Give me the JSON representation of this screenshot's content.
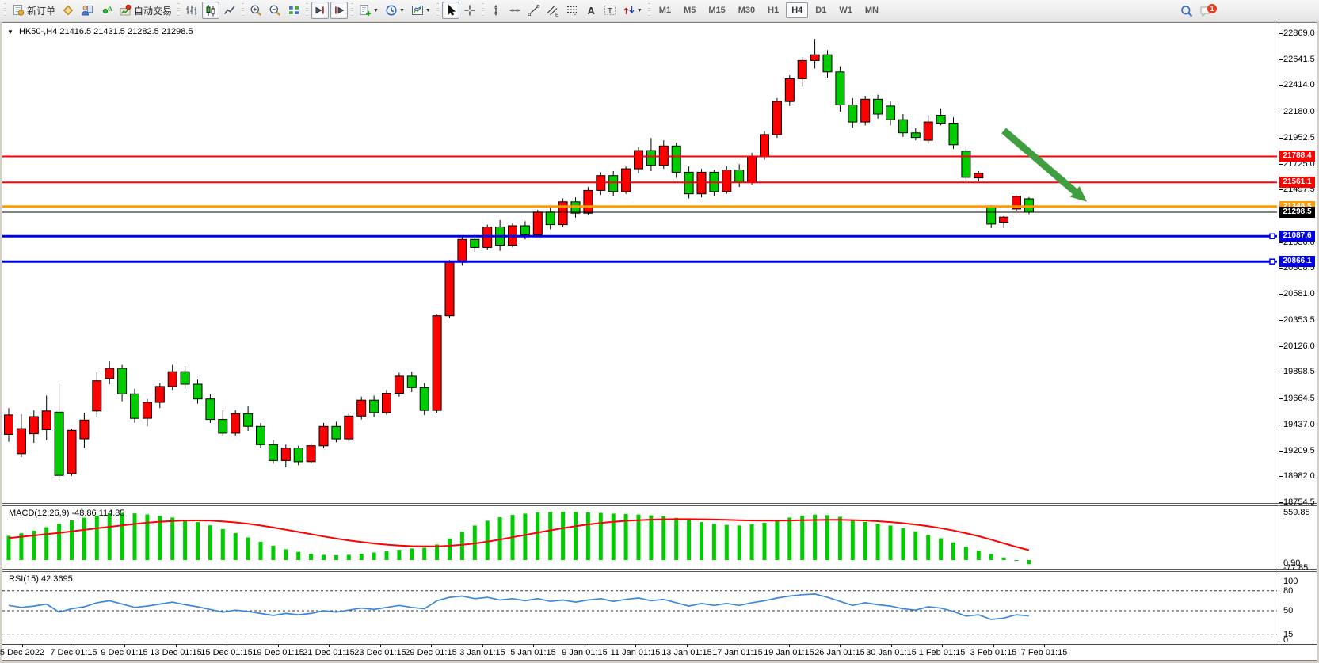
{
  "toolbar": {
    "groups": [
      {
        "items": [
          {
            "name": "new-order-button",
            "icon": "new-order",
            "label": "新订单"
          },
          {
            "name": "gold-chart-button",
            "icon": "gold-diamond"
          },
          {
            "name": "market-watch-button",
            "icon": "person"
          },
          {
            "name": "navigator-button",
            "icon": "sonar"
          },
          {
            "name": "autotrading-button",
            "icon": "autotrading",
            "label": "自动交易"
          }
        ]
      },
      {
        "items": [
          {
            "name": "bar-chart-button",
            "icon": "bar-chart"
          },
          {
            "name": "candlestick-chart-button",
            "icon": "candlestick",
            "pressed": true
          },
          {
            "name": "line-chart-button",
            "icon": "line-chart"
          }
        ]
      },
      {
        "items": [
          {
            "name": "zoom-in-button",
            "icon": "zoom-in"
          },
          {
            "name": "zoom-out-button",
            "icon": "zoom-out"
          },
          {
            "name": "tile-windows-button",
            "icon": "tile-windows"
          }
        ]
      },
      {
        "items": [
          {
            "name": "auto-scroll-button",
            "icon": "auto-scroll",
            "pressed": true
          },
          {
            "name": "chart-shift-button",
            "icon": "chart-shift",
            "pressed": true
          }
        ]
      },
      {
        "items": [
          {
            "name": "indicators-button",
            "icon": "indicators",
            "dropdown": true
          },
          {
            "name": "periods-button",
            "icon": "clock",
            "dropdown": true
          },
          {
            "name": "templates-button",
            "icon": "template",
            "dropdown": true
          }
        ]
      },
      {
        "items": [
          {
            "name": "cursor-button",
            "icon": "cursor",
            "pressed": true
          },
          {
            "name": "crosshair-button",
            "icon": "crosshair"
          }
        ]
      },
      {
        "items": [
          {
            "name": "vertical-line-button",
            "icon": "v-line"
          },
          {
            "name": "horizontal-line-button",
            "icon": "h-line"
          },
          {
            "name": "trendline-button",
            "icon": "trendline"
          },
          {
            "name": "equidistant-channel-button",
            "icon": "channel"
          },
          {
            "name": "fibonacci-button",
            "icon": "fibonacci"
          },
          {
            "name": "text-button",
            "icon": "text-a"
          },
          {
            "name": "text-label-button",
            "icon": "text-label"
          },
          {
            "name": "arrows-button",
            "icon": "arrows-tool",
            "dropdown": true
          }
        ]
      }
    ],
    "timeframes": [
      "M1",
      "M5",
      "M15",
      "M30",
      "H1",
      "H4",
      "D1",
      "W1",
      "MN"
    ],
    "active_timeframe": "H4",
    "right": [
      {
        "name": "search-button",
        "icon": "magnifier"
      },
      {
        "name": "notifications-button",
        "icon": "chat",
        "badge": "1"
      }
    ]
  },
  "symbol_header": {
    "symbol": "HK50-,H4",
    "ohlc": "21416.5 21431.5 21282.5 21298.5"
  },
  "price_axis_ticks": [
    "22869.0",
    "22641.5",
    "22414.0",
    "22180.0",
    "21952.5",
    "21725.0",
    "21497.5",
    "21270.0",
    "21036.0",
    "20808.5",
    "20581.0",
    "20353.5",
    "20126.0",
    "19898.5",
    "19664.5",
    "19437.0",
    "19209.5",
    "18982.0",
    "18754.5"
  ],
  "price_levels": [
    {
      "value": 21788.4,
      "tag": "21788.4",
      "color": "#ff0000",
      "thickness": 2,
      "role": "resistance"
    },
    {
      "value": 21561.1,
      "tag": "21561.1",
      "color": "#ff0000",
      "thickness": 2,
      "role": "resistance"
    },
    {
      "value": 21348.5,
      "tag": "21348.5",
      "color": "#ff9a00",
      "thickness": 3,
      "role": "pivot"
    },
    {
      "value": 21298.5,
      "tag": "21298.5",
      "color": "#000000",
      "thickness": 1,
      "role": "current-price"
    },
    {
      "value": 21087.6,
      "tag": "21087.6",
      "color": "#0000e8",
      "thickness": 3,
      "role": "support",
      "endpoint_marker": true
    },
    {
      "value": 20866.1,
      "tag": "20866.1",
      "color": "#0000e8",
      "thickness": 3,
      "role": "support",
      "endpoint_marker": true
    }
  ],
  "date_axis": [
    "5 Dec 2022",
    "7 Dec 01:15",
    "9 Dec 01:15",
    "13 Dec 01:15",
    "15 Dec 01:15",
    "19 Dec 01:15",
    "21 Dec 01:15",
    "23 Dec 01:15",
    "29 Dec 01:15",
    "3 Jan 01:15",
    "5 Jan 01:15",
    "9 Jan 01:15",
    "11 Jan 01:15",
    "13 Jan 01:15",
    "17 Jan 01:15",
    "19 Jan 01:15",
    "26 Jan 01:15",
    "30 Jan 01:15",
    "1 Feb 01:15",
    "3 Feb 01:15",
    "7 Feb 01:15"
  ],
  "chart_data": {
    "type": "candlestick",
    "symbol": "HK50-",
    "timeframe": "H4",
    "up_color": "#ff0000",
    "down_color": "#00cc00",
    "price_range": [
      18754.5,
      22869.0
    ],
    "candles_ohlc": [
      [
        19350,
        19580,
        19285,
        19520
      ],
      [
        19180,
        19525,
        19150,
        19400
      ],
      [
        19355,
        19560,
        19275,
        19505
      ],
      [
        19390,
        19690,
        19300,
        19555
      ],
      [
        19545,
        19795,
        18950,
        18990
      ],
      [
        19005,
        19400,
        18985,
        19385
      ],
      [
        19310,
        19540,
        19230,
        19475
      ],
      [
        19555,
        19895,
        19500,
        19820
      ],
      [
        19840,
        19990,
        19790,
        19930
      ],
      [
        19930,
        19960,
        19640,
        19705
      ],
      [
        19705,
        19750,
        19450,
        19490
      ],
      [
        19490,
        19660,
        19420,
        19630
      ],
      [
        19630,
        19800,
        19580,
        19770
      ],
      [
        19770,
        19960,
        19740,
        19900
      ],
      [
        19900,
        19950,
        19750,
        19790
      ],
      [
        19790,
        19830,
        19620,
        19660
      ],
      [
        19660,
        19700,
        19450,
        19480
      ],
      [
        19480,
        19560,
        19330,
        19360
      ],
      [
        19360,
        19560,
        19340,
        19530
      ],
      [
        19530,
        19600,
        19380,
        19420
      ],
      [
        19420,
        19450,
        19230,
        19260
      ],
      [
        19260,
        19300,
        19090,
        19120
      ],
      [
        19120,
        19260,
        19060,
        19230
      ],
      [
        19230,
        19250,
        19080,
        19110
      ],
      [
        19110,
        19270,
        19090,
        19250
      ],
      [
        19250,
        19450,
        19230,
        19420
      ],
      [
        19420,
        19460,
        19280,
        19310
      ],
      [
        19310,
        19540,
        19290,
        19510
      ],
      [
        19510,
        19680,
        19480,
        19650
      ],
      [
        19650,
        19690,
        19500,
        19540
      ],
      [
        19540,
        19740,
        19520,
        19710
      ],
      [
        19710,
        19890,
        19680,
        19860
      ],
      [
        19860,
        19900,
        19720,
        19760
      ],
      [
        19760,
        19800,
        19520,
        19560
      ],
      [
        19560,
        20400,
        19540,
        20390
      ],
      [
        20390,
        20880,
        20370,
        20860
      ],
      [
        20860,
        21080,
        20830,
        21060
      ],
      [
        21060,
        21100,
        20950,
        20990
      ],
      [
        20990,
        21190,
        20970,
        21170
      ],
      [
        21170,
        21230,
        20960,
        21010
      ],
      [
        21010,
        21200,
        20990,
        21180
      ],
      [
        21180,
        21220,
        21060,
        21100
      ],
      [
        21100,
        21320,
        21080,
        21300
      ],
      [
        21300,
        21340,
        21150,
        21190
      ],
      [
        21190,
        21420,
        21170,
        21390
      ],
      [
        21390,
        21430,
        21250,
        21290
      ],
      [
        21290,
        21520,
        21270,
        21490
      ],
      [
        21490,
        21650,
        21450,
        21620
      ],
      [
        21620,
        21660,
        21440,
        21480
      ],
      [
        21480,
        21700,
        21460,
        21680
      ],
      [
        21680,
        21870,
        21640,
        21840
      ],
      [
        21840,
        21950,
        21660,
        21710
      ],
      [
        21710,
        21930,
        21680,
        21880
      ],
      [
        21880,
        21910,
        21600,
        21650
      ],
      [
        21650,
        21700,
        21420,
        21460
      ],
      [
        21460,
        21680,
        21430,
        21650
      ],
      [
        21650,
        21670,
        21440,
        21480
      ],
      [
        21480,
        21700,
        21460,
        21670
      ],
      [
        21670,
        21720,
        21520,
        21560
      ],
      [
        21560,
        21820,
        21540,
        21790
      ],
      [
        21790,
        22010,
        21760,
        21980
      ],
      [
        21980,
        22300,
        21950,
        22270
      ],
      [
        22270,
        22500,
        22230,
        22470
      ],
      [
        22470,
        22660,
        22400,
        22630
      ],
      [
        22630,
        22820,
        22560,
        22680
      ],
      [
        22680,
        22720,
        22480,
        22530
      ],
      [
        22530,
        22580,
        22180,
        22240
      ],
      [
        22240,
        22300,
        22040,
        22090
      ],
      [
        22090,
        22320,
        22060,
        22290
      ],
      [
        22290,
        22330,
        22120,
        22160
      ],
      [
        22230,
        22270,
        22060,
        22110
      ],
      [
        22110,
        22160,
        21960,
        21995
      ],
      [
        21995,
        22035,
        21930,
        21955
      ],
      [
        21930,
        22150,
        21900,
        22090
      ],
      [
        22150,
        22210,
        22060,
        22080
      ],
      [
        22080,
        22130,
        21855,
        21890
      ],
      [
        21835,
        21880,
        21560,
        21605
      ],
      [
        21600,
        21660,
        21570,
        21640
      ],
      [
        21345,
        21360,
        21160,
        21195
      ],
      [
        21210,
        21265,
        21160,
        21255
      ],
      [
        21327,
        21445,
        21305,
        21438
      ],
      [
        21416.5,
        21431.5,
        21282.5,
        21298.5
      ]
    ],
    "annotation_arrow": {
      "color": "#3f9e3f",
      "from_bar": 79,
      "from_price": 22015,
      "to_bar": 85.6,
      "to_price": 21390
    },
    "macd": {
      "label": "MACD(12,26,9) -48.86 114.85",
      "params": "12,26,9",
      "last_main": -48.86,
      "last_signal": 114.85,
      "axis_labels": [
        "559.85",
        "0.90",
        "-77.85"
      ],
      "axis_max": 559.85,
      "axis_min": -77.85,
      "histogram_color": "#00cc00",
      "signal_color": "#ff0000",
      "histogram": [
        280,
        310,
        340,
        380,
        420,
        460,
        490,
        515,
        535,
        545,
        540,
        528,
        512,
        492,
        468,
        440,
        402,
        360,
        312,
        262,
        212,
        165,
        125,
        95,
        72,
        60,
        55,
        60,
        72,
        86,
        100,
        118,
        134,
        142,
        180,
        250,
        330,
        400,
        455,
        495,
        522,
        538,
        550,
        557,
        559.85,
        556,
        552,
        546,
        538,
        532,
        527,
        518,
        508,
        488,
        462,
        440,
        420,
        408,
        400,
        412,
        432,
        462,
        492,
        512,
        526,
        520,
        500,
        470,
        442,
        420,
        400,
        370,
        332,
        292,
        252,
        205,
        155,
        110,
        70,
        30,
        -10,
        -48.86
      ],
      "signal": [
        255,
        270,
        285,
        300,
        315,
        332,
        350,
        368,
        385,
        402,
        418,
        432,
        444,
        453,
        458,
        459,
        456,
        448,
        436,
        420,
        400,
        377,
        352,
        326,
        300,
        274,
        250,
        228,
        209,
        192,
        178,
        168,
        161,
        158,
        159,
        165,
        176,
        192,
        213,
        238,
        264,
        291,
        318,
        344,
        369,
        392,
        412,
        429,
        443,
        454,
        462,
        468,
        472,
        474,
        474,
        472,
        469,
        465,
        461,
        458,
        456,
        456,
        458,
        461,
        464,
        466,
        466,
        463,
        458,
        450,
        440,
        427,
        411,
        392,
        369,
        342,
        311,
        276,
        237,
        194,
        152,
        114.85
      ]
    },
    "rsi": {
      "label": "RSI(15) 42.3695",
      "period": 15,
      "last_value": 42.3695,
      "axis_labels": [
        "100",
        "80",
        "50",
        "15",
        "0"
      ],
      "levels_dashed": [
        80,
        50,
        15
      ],
      "line_color": "#3f87d9",
      "series": [
        58,
        55,
        57,
        60,
        48,
        53,
        56,
        62,
        65,
        60,
        55,
        57,
        60,
        63,
        59,
        56,
        52,
        48,
        51,
        49,
        46,
        43,
        46,
        44,
        46,
        50,
        48,
        51,
        54,
        52,
        55,
        58,
        55,
        53,
        65,
        70,
        72,
        68,
        70,
        66,
        68,
        65,
        68,
        64,
        66,
        63,
        66,
        68,
        64,
        67,
        69,
        65,
        67,
        62,
        57,
        61,
        58,
        61,
        58,
        62,
        65,
        69,
        72,
        74,
        75,
        70,
        64,
        58,
        62,
        59,
        57,
        53,
        51,
        56,
        54,
        49,
        42,
        44,
        37,
        39,
        44,
        42.37
      ]
    }
  }
}
